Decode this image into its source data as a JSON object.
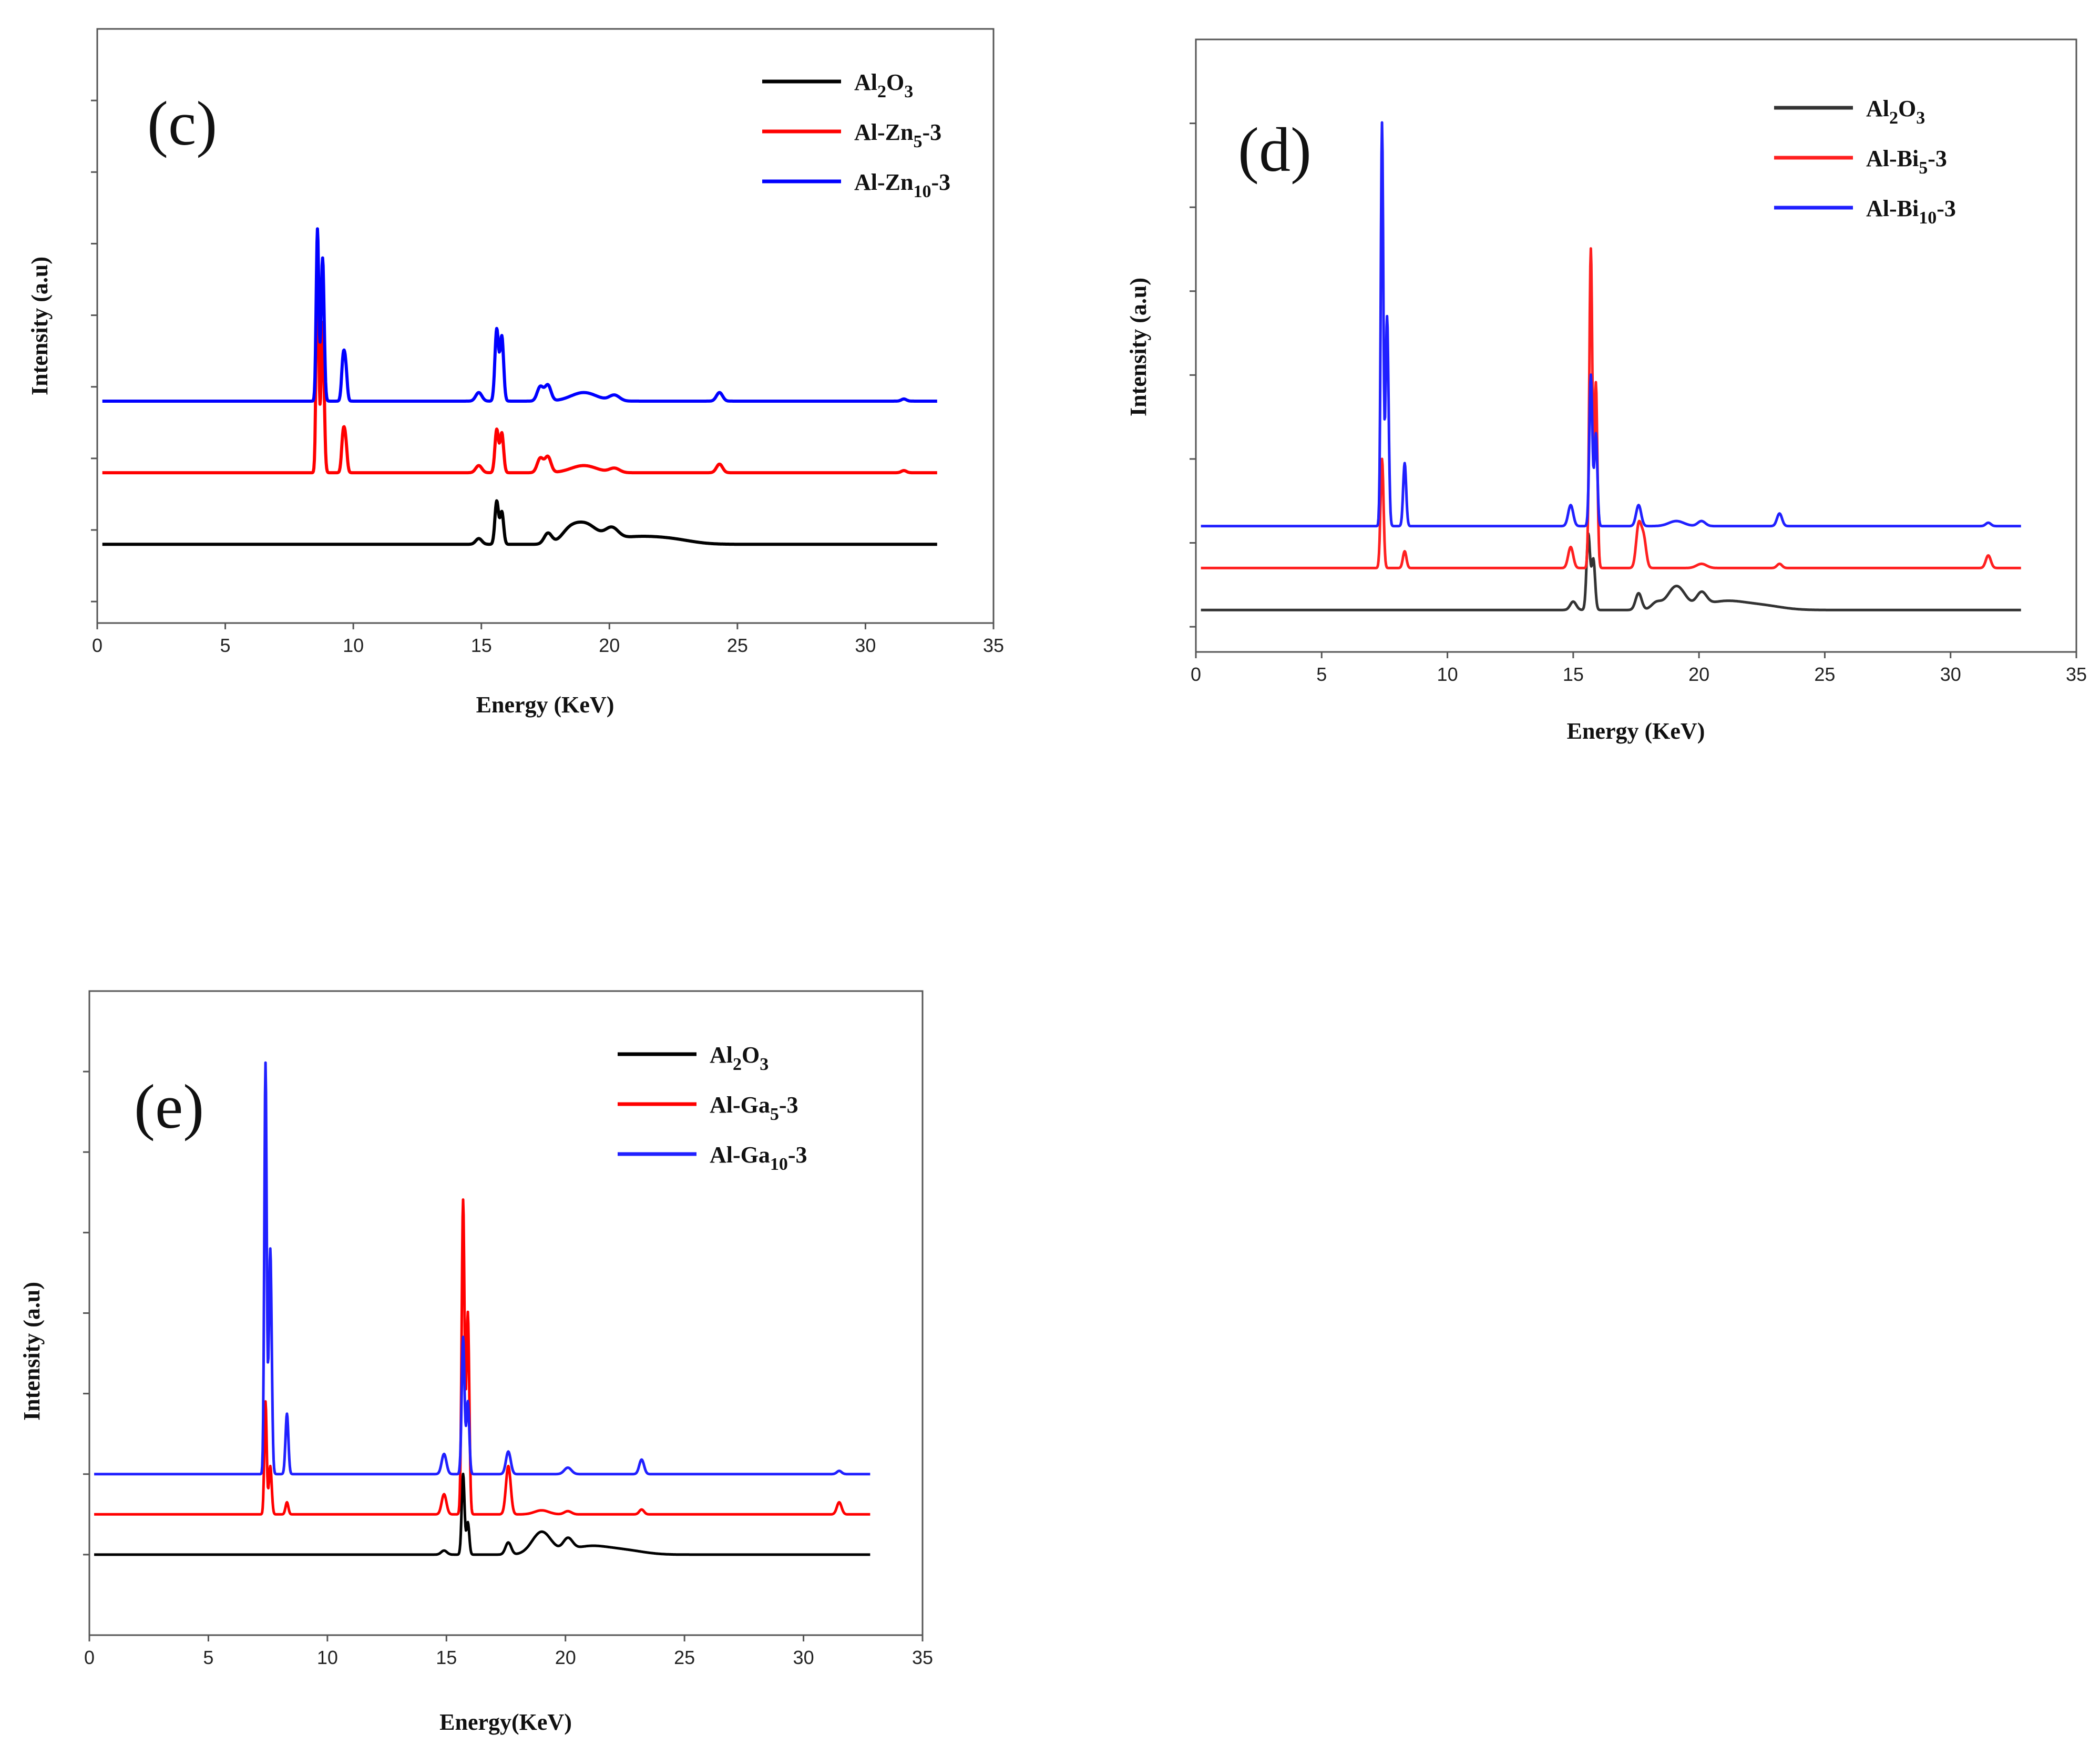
{
  "chart_data": [
    {
      "type": "line",
      "panel_label": "(c)",
      "xlabel": "Energy (KeV)",
      "ylabel": "Intensity (a.u)",
      "xlim": [
        0,
        35
      ],
      "ylim": [
        -0.3,
        8
      ],
      "xticks": [
        0,
        5,
        10,
        15,
        20,
        25,
        30,
        35
      ],
      "grid": false,
      "legend_position": "top-right",
      "series": [
        {
          "name": "Al2O3",
          "formula": [
            "Al",
            "2",
            "O",
            "3"
          ],
          "color": "#000000",
          "offset": 0.8,
          "linewidth": 6,
          "peaks": [
            [
              14.9,
              0.08,
              0.12
            ],
            [
              15.6,
              0.6,
              0.07
            ],
            [
              15.8,
              0.45,
              0.07
            ],
            [
              17.6,
              0.15,
              0.15
            ],
            [
              18.4,
              0.1,
              0.3
            ],
            [
              19.0,
              0.28,
              0.5
            ],
            [
              20.1,
              0.15,
              0.25
            ],
            [
              21.0,
              0.1,
              1.0
            ],
            [
              22.5,
              0.05,
              0.8
            ]
          ]
        },
        {
          "name": "Al-Zn5-3",
          "formula": [
            "Al-Zn",
            "5",
            "-3",
            ""
          ],
          "color": "#ff0000",
          "offset": 1.8,
          "linewidth": 6,
          "peaks": [
            [
              8.6,
              3.2,
              0.05
            ],
            [
              8.8,
              2.1,
              0.06
            ],
            [
              9.6,
              0.5,
              0.06
            ],
            [
              9.7,
              0.4,
              0.06
            ],
            [
              14.9,
              0.1,
              0.12
            ],
            [
              15.6,
              0.6,
              0.07
            ],
            [
              15.8,
              0.55,
              0.07
            ],
            [
              17.3,
              0.2,
              0.12
            ],
            [
              17.6,
              0.22,
              0.12
            ],
            [
              19.0,
              0.1,
              0.5
            ],
            [
              20.2,
              0.06,
              0.2
            ],
            [
              24.3,
              0.12,
              0.12
            ],
            [
              31.5,
              0.03,
              0.1
            ]
          ]
        },
        {
          "name": "Al-Zn10-3",
          "formula": [
            "Al-Zn",
            "10",
            "-3",
            ""
          ],
          "color": "#0000ff",
          "offset": 2.8,
          "linewidth": 6,
          "peaks": [
            [
              8.6,
              2.4,
              0.05
            ],
            [
              8.8,
              2.0,
              0.06
            ],
            [
              9.6,
              0.55,
              0.06
            ],
            [
              9.7,
              0.45,
              0.06
            ],
            [
              14.9,
              0.12,
              0.12
            ],
            [
              15.6,
              1.0,
              0.07
            ],
            [
              15.8,
              0.9,
              0.07
            ],
            [
              17.3,
              0.2,
              0.12
            ],
            [
              17.6,
              0.22,
              0.12
            ],
            [
              19.0,
              0.12,
              0.5
            ],
            [
              20.2,
              0.08,
              0.2
            ],
            [
              24.3,
              0.12,
              0.12
            ],
            [
              31.5,
              0.03,
              0.1
            ]
          ]
        }
      ]
    },
    {
      "type": "line",
      "panel_label": "(d)",
      "xlabel": "Energy (KeV)",
      "ylabel": "Intensity (a.u)",
      "xlim": [
        0,
        35
      ],
      "ylim": [
        -0.3,
        7
      ],
      "xticks": [
        0,
        5,
        10,
        15,
        20,
        25,
        30,
        35
      ],
      "grid": false,
      "legend_position": "top-right",
      "series": [
        {
          "name": "Al2O3",
          "formula": [
            "Al",
            "2",
            "O",
            "3"
          ],
          "color": "#333333",
          "offset": 0.2,
          "linewidth": 5,
          "peaks": [
            [
              15.0,
              0.1,
              0.12
            ],
            [
              15.6,
              0.9,
              0.07
            ],
            [
              15.8,
              0.6,
              0.07
            ],
            [
              17.6,
              0.2,
              0.12
            ],
            [
              18.3,
              0.08,
              0.2
            ],
            [
              19.1,
              0.28,
              0.35
            ],
            [
              20.1,
              0.16,
              0.2
            ],
            [
              21.0,
              0.1,
              0.8
            ],
            [
              22.5,
              0.05,
              0.8
            ]
          ]
        },
        {
          "name": "Al-Bi5-3",
          "formula": [
            "Al-Bi",
            "5",
            "-3",
            ""
          ],
          "color": "#ff2020",
          "offset": 0.7,
          "linewidth": 5,
          "peaks": [
            [
              7.4,
              1.3,
              0.06
            ],
            [
              8.3,
              0.2,
              0.07
            ],
            [
              14.9,
              0.25,
              0.1
            ],
            [
              15.7,
              3.8,
              0.06
            ],
            [
              15.9,
              2.2,
              0.06
            ],
            [
              17.6,
              0.5,
              0.1
            ],
            [
              17.8,
              0.35,
              0.1
            ],
            [
              20.1,
              0.05,
              0.2
            ],
            [
              23.2,
              0.05,
              0.1
            ],
            [
              31.5,
              0.15,
              0.1
            ]
          ]
        },
        {
          "name": "Al-Bi10-3",
          "formula": [
            "Al-Bi",
            "10",
            "-3",
            ""
          ],
          "color": "#2020ff",
          "offset": 1.2,
          "linewidth": 5,
          "peaks": [
            [
              7.4,
              4.8,
              0.05
            ],
            [
              7.6,
              2.5,
              0.06
            ],
            [
              8.3,
              0.75,
              0.06
            ],
            [
              14.9,
              0.25,
              0.1
            ],
            [
              15.7,
              1.8,
              0.06
            ],
            [
              15.9,
              1.1,
              0.06
            ],
            [
              17.6,
              0.25,
              0.1
            ],
            [
              19.1,
              0.06,
              0.3
            ],
            [
              20.1,
              0.06,
              0.15
            ],
            [
              23.2,
              0.15,
              0.1
            ],
            [
              31.5,
              0.04,
              0.1
            ]
          ]
        }
      ]
    },
    {
      "type": "line",
      "panel_label": "(e)",
      "xlabel": "Energy(KeV)",
      "ylabel": "Intensity (a.u)",
      "xlim": [
        0,
        35
      ],
      "ylim": [
        -1,
        7
      ],
      "xticks": [
        0,
        5,
        10,
        15,
        20,
        25,
        30,
        35
      ],
      "grid": false,
      "legend_position": "top-right",
      "series": [
        {
          "name": "Al2O3",
          "formula": [
            "Al",
            "2",
            "O",
            "3"
          ],
          "color": "#000000",
          "offset": 0.0,
          "linewidth": 5,
          "peaks": [
            [
              14.9,
              0.05,
              0.12
            ],
            [
              15.7,
              1.0,
              0.06
            ],
            [
              15.9,
              0.4,
              0.06
            ],
            [
              17.6,
              0.15,
              0.12
            ],
            [
              19.0,
              0.28,
              0.4
            ],
            [
              20.1,
              0.15,
              0.2
            ],
            [
              21.0,
              0.1,
              0.8
            ],
            [
              22.5,
              0.05,
              0.8
            ]
          ]
        },
        {
          "name": "Al-Ga5-3",
          "formula": [
            "Al-Ga",
            "5",
            "-3",
            ""
          ],
          "color": "#ff0000",
          "offset": 0.5,
          "linewidth": 5,
          "peaks": [
            [
              7.4,
              1.4,
              0.05
            ],
            [
              7.6,
              0.6,
              0.06
            ],
            [
              8.3,
              0.15,
              0.06
            ],
            [
              14.9,
              0.25,
              0.1
            ],
            [
              15.7,
              3.9,
              0.06
            ],
            [
              15.9,
              2.5,
              0.06
            ],
            [
              17.6,
              0.6,
              0.1
            ],
            [
              19.0,
              0.05,
              0.3
            ],
            [
              20.1,
              0.04,
              0.15
            ],
            [
              23.2,
              0.06,
              0.1
            ],
            [
              31.5,
              0.15,
              0.1
            ]
          ]
        },
        {
          "name": "Al-Ga10-3",
          "formula": [
            "Al-Ga",
            "10",
            "-3",
            ""
          ],
          "color": "#2020ff",
          "offset": 1.0,
          "linewidth": 5,
          "peaks": [
            [
              7.4,
              5.1,
              0.05
            ],
            [
              7.6,
              2.8,
              0.06
            ],
            [
              8.3,
              0.75,
              0.06
            ],
            [
              14.9,
              0.25,
              0.1
            ],
            [
              15.7,
              1.7,
              0.06
            ],
            [
              15.9,
              0.9,
              0.06
            ],
            [
              17.6,
              0.28,
              0.1
            ],
            [
              20.1,
              0.08,
              0.15
            ],
            [
              23.2,
              0.18,
              0.1
            ],
            [
              31.5,
              0.04,
              0.1
            ]
          ]
        }
      ]
    }
  ]
}
